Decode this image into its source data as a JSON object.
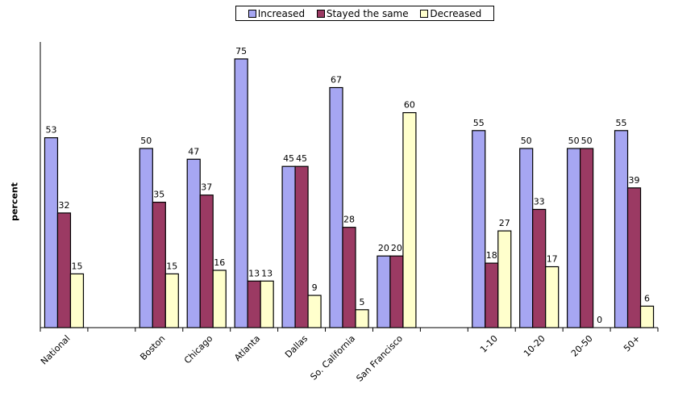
{
  "chart_data": {
    "type": "bar",
    "ylabel": "percent",
    "ylim": [
      0,
      80
    ],
    "legend_position": "top-center",
    "grid": false,
    "categories": [
      "National",
      "",
      "Boston",
      "Chicago",
      "Atlanta",
      "Dallas",
      "So. California",
      "San Francisco",
      "",
      "1-10",
      "10-20",
      "20-50",
      "50+"
    ],
    "series": [
      {
        "name": "Increased",
        "color": "#a6a6f2",
        "values": [
          53,
          null,
          50,
          47,
          75,
          45,
          67,
          20,
          null,
          55,
          50,
          50,
          55
        ]
      },
      {
        "name": "Stayed the same",
        "color": "#9b3a63",
        "values": [
          32,
          null,
          35,
          37,
          13,
          45,
          28,
          20,
          null,
          18,
          33,
          50,
          39
        ]
      },
      {
        "name": "Decreased",
        "color": "#ffffcc",
        "values": [
          15,
          null,
          15,
          16,
          13,
          9,
          5,
          60,
          null,
          27,
          17,
          0,
          6
        ]
      }
    ]
  }
}
